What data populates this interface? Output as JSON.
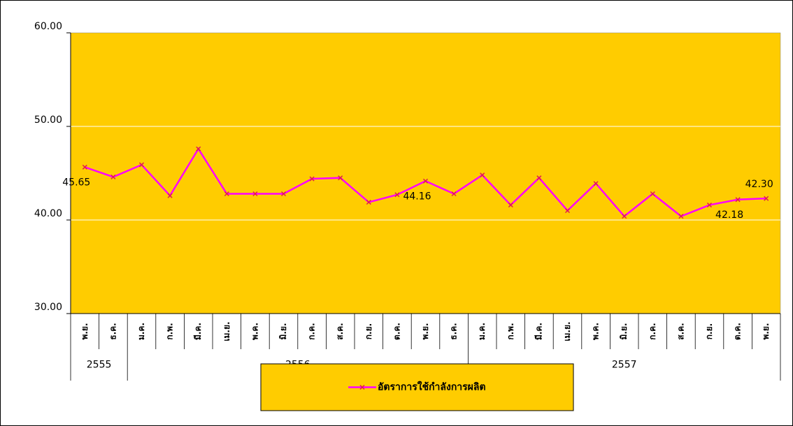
{
  "chart_data": {
    "type": "line",
    "categories": [
      "พ.ย.",
      "ธ.ค.",
      "ม.ค.",
      "ก.พ.",
      "มี.ค.",
      "เม.ย.",
      "พ.ค.",
      "มิ.ย.",
      "ก.ค.",
      "ส.ค.",
      "ก.ย.",
      "ต.ค.",
      "พ.ย.",
      "ธ.ค.",
      "ม.ค.",
      "ก.พ.",
      "มี.ค.",
      "เม.ย.",
      "พ.ค.",
      "มิ.ย.",
      "ก.ค.",
      "ส.ค.",
      "ก.ย.",
      "ต.ค.",
      "พ.ย."
    ],
    "groups": [
      {
        "name": "2555",
        "count": 2
      },
      {
        "name": "2556",
        "count": 12
      },
      {
        "name": "2557",
        "count": 11
      }
    ],
    "series": [
      {
        "name": "อัตราการใช้กำลังการผลิต",
        "color": "#ff00ff",
        "marker_color": "#e0204a",
        "values": [
          45.65,
          44.6,
          45.9,
          42.6,
          47.6,
          42.8,
          42.8,
          42.8,
          44.4,
          44.5,
          41.9,
          42.7,
          44.16,
          42.8,
          44.8,
          41.6,
          44.5,
          41.0,
          43.9,
          40.4,
          42.8,
          40.4,
          41.6,
          42.18,
          42.3
        ],
        "value_labels": [
          "45.65",
          null,
          null,
          null,
          null,
          null,
          null,
          null,
          null,
          null,
          null,
          null,
          "44.16",
          null,
          null,
          null,
          null,
          null,
          null,
          null,
          null,
          null,
          null,
          "42.18",
          "42.30"
        ]
      }
    ],
    "ylim": [
      30,
      60
    ],
    "yticks": [
      {
        "value": 30,
        "label": "30.00"
      },
      {
        "value": 40,
        "label": "40.00"
      },
      {
        "value": 50,
        "label": "50.00"
      },
      {
        "value": 60,
        "label": "60.00"
      }
    ],
    "grid": true,
    "plot_background": "#ffcc00",
    "legend_position": "bottom"
  }
}
